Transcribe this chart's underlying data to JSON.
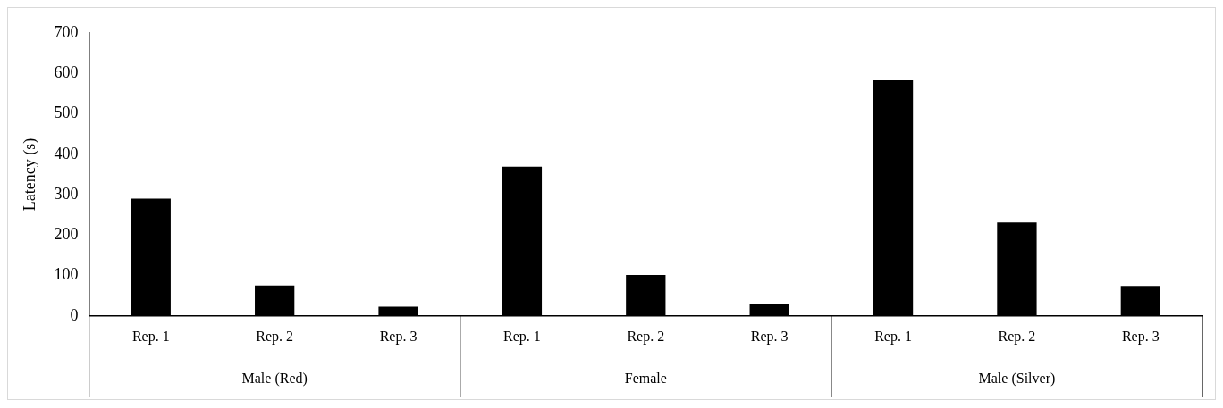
{
  "chart_data": {
    "type": "bar",
    "ylabel": "Latency (s)",
    "categories": [
      "Rep. 1",
      "Rep. 2",
      "Rep. 3",
      "Rep. 1",
      "Rep. 2",
      "Rep. 3",
      "Rep. 1",
      "Rep. 2",
      "Rep. 3"
    ],
    "values": [
      290,
      75,
      23,
      369,
      101,
      30,
      583,
      231,
      74
    ],
    "color": "#000000",
    "ylim": [
      0,
      700
    ],
    "yticks": [
      0,
      100,
      200,
      300,
      400,
      500,
      600,
      700
    ],
    "grid": false,
    "legend": false,
    "annotations": [
      "Male (Red)",
      "Female",
      "Male (Silver)"
    ]
  }
}
